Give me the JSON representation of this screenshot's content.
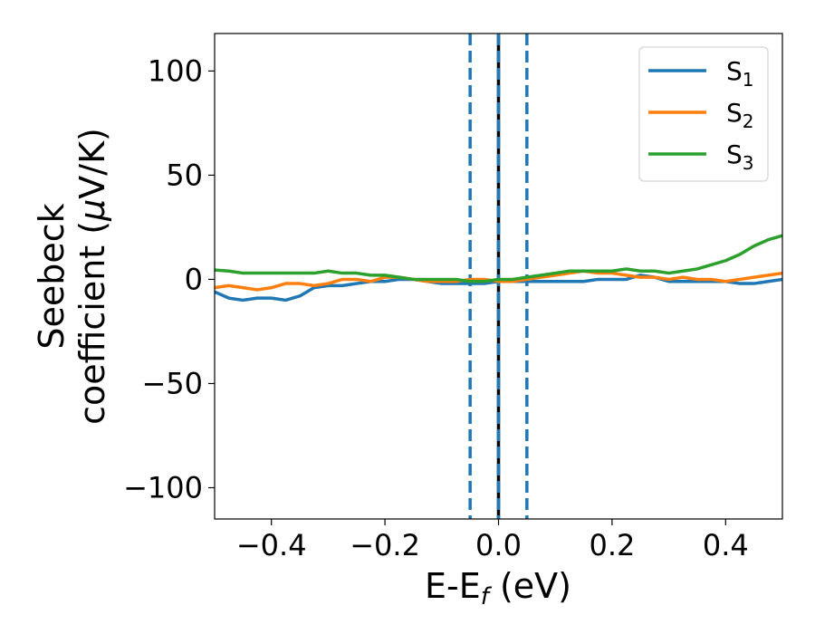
{
  "chart_data": {
    "type": "line",
    "title": "",
    "xlabel": {
      "main": "E-E",
      "sub": "f",
      "unit": " (eV)"
    },
    "ylabel": {
      "line1": "Seebeck",
      "line2_pre": "coefficient  (",
      "mu": "μ",
      "line2_post": "V/K)"
    },
    "xlim": [
      -0.5,
      0.5
    ],
    "ylim": [
      -115,
      118
    ],
    "xticks": [
      -0.4,
      -0.2,
      0.0,
      0.2,
      0.4
    ],
    "xtick_labels": [
      "−0.4",
      "−0.2",
      "0.0",
      "0.2",
      "0.4"
    ],
    "yticks": [
      -100,
      -50,
      0,
      50,
      100
    ],
    "ytick_labels": [
      "−100",
      "−50",
      "0",
      "50",
      "100"
    ],
    "legend_position": "top-right",
    "vlines": [
      {
        "x": -0.05,
        "style": "dashed",
        "color": "#1f77b4"
      },
      {
        "x": 0.05,
        "style": "dashed",
        "color": "#1f77b4"
      },
      {
        "x": 0.0,
        "style": "solid",
        "color": "#000000"
      },
      {
        "x": 0.0,
        "style": "dashed",
        "color": "#1f77b4"
      }
    ],
    "series": [
      {
        "name": "S",
        "sub": "1",
        "color": "#1f77b4",
        "x": [
          -0.5,
          -0.475,
          -0.45,
          -0.425,
          -0.4,
          -0.375,
          -0.35,
          -0.325,
          -0.3,
          -0.275,
          -0.25,
          -0.225,
          -0.2,
          -0.175,
          -0.15,
          -0.125,
          -0.1,
          -0.075,
          -0.05,
          -0.025,
          0.0,
          0.025,
          0.05,
          0.075,
          0.1,
          0.125,
          0.15,
          0.175,
          0.2,
          0.225,
          0.25,
          0.275,
          0.3,
          0.325,
          0.35,
          0.375,
          0.4,
          0.425,
          0.45,
          0.475,
          0.5
        ],
        "values": [
          -6,
          -9,
          -10,
          -9,
          -9,
          -10,
          -8,
          -4,
          -3,
          -3,
          -2,
          -1,
          -1,
          0,
          0,
          -1,
          -2,
          -2,
          -2,
          -2,
          -1,
          -1,
          -1,
          -1,
          -1,
          -1,
          -1,
          0,
          0,
          0,
          2,
          1,
          -1,
          -1,
          -1,
          -1,
          -1,
          -2,
          -2,
          -1,
          0
        ]
      },
      {
        "name": "S",
        "sub": "2",
        "color": "#ff7f0e",
        "x": [
          -0.5,
          -0.475,
          -0.45,
          -0.425,
          -0.4,
          -0.375,
          -0.35,
          -0.325,
          -0.3,
          -0.275,
          -0.25,
          -0.225,
          -0.2,
          -0.175,
          -0.15,
          -0.125,
          -0.1,
          -0.075,
          -0.05,
          -0.025,
          0.0,
          0.025,
          0.05,
          0.075,
          0.1,
          0.125,
          0.15,
          0.175,
          0.2,
          0.225,
          0.25,
          0.275,
          0.3,
          0.325,
          0.35,
          0.375,
          0.4,
          0.425,
          0.45,
          0.475,
          0.5
        ],
        "values": [
          -4,
          -3,
          -4,
          -5,
          -4,
          -2,
          -2,
          -3,
          -2,
          0,
          0,
          -1,
          1,
          1,
          0,
          -1,
          -1,
          -1,
          0,
          0,
          -1,
          -1,
          0,
          1,
          2,
          3,
          4,
          3,
          3,
          2,
          1,
          1,
          0,
          1,
          0,
          0,
          -1,
          0,
          1,
          2,
          3
        ]
      },
      {
        "name": "S",
        "sub": "3",
        "color": "#2ca02c",
        "x": [
          -0.5,
          -0.475,
          -0.45,
          -0.425,
          -0.4,
          -0.375,
          -0.35,
          -0.325,
          -0.3,
          -0.275,
          -0.25,
          -0.225,
          -0.2,
          -0.175,
          -0.15,
          -0.125,
          -0.1,
          -0.075,
          -0.05,
          -0.025,
          0.0,
          0.025,
          0.05,
          0.075,
          0.1,
          0.125,
          0.15,
          0.175,
          0.2,
          0.225,
          0.25,
          0.275,
          0.3,
          0.325,
          0.35,
          0.375,
          0.4,
          0.425,
          0.45,
          0.475,
          0.5
        ],
        "values": [
          4.5,
          4,
          3,
          3,
          3,
          3,
          3,
          3,
          4,
          3,
          3,
          2,
          2,
          1,
          0,
          0,
          0,
          0,
          -1,
          -1,
          0,
          0,
          1,
          2,
          3,
          4,
          4,
          4,
          4,
          5,
          4,
          4,
          3,
          4,
          5,
          7,
          9,
          12,
          16,
          19,
          21
        ]
      }
    ]
  }
}
